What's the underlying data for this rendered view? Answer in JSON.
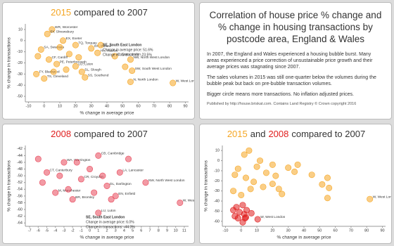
{
  "info": {
    "title": "Correlation of house price % change and % change in housing transactions by postcode area, England & Wales",
    "paragraphs": [
      "In 2007, the England and Wales experienced a housing bubble burst. Many areas experienced a price correction of unsustainable price growth and their average prices was stagnating since 2007.",
      "The sales volumes in 2015 was still one-quarter below the volumes during the bubble peak but back on pre-bubble transaction volumes.",
      "Bigger circle means more transactions. No inflation adjusted prices."
    ],
    "credit": "Published by http://house.briskat.com. Contains Land Registry © Crown copyright 2016"
  },
  "chart_data": [
    {
      "type": "scatter",
      "title": [
        {
          "text": "2015",
          "color": "#f5a623"
        },
        {
          "text": "compared to 2007"
        }
      ],
      "xlabel": "% change in average price",
      "ylabel": "% change in transactions",
      "xlim": [
        -12,
        92
      ],
      "xticks": [
        -10,
        0,
        10,
        20,
        30,
        40,
        50,
        60,
        70,
        80,
        90
      ],
      "ylim": [
        -55,
        15
      ],
      "yticks": [
        10,
        0,
        -10,
        -20,
        -30,
        -40,
        -50
      ],
      "grid": false,
      "series": [
        {
          "color": "#f5a623",
          "x": [
            5,
            2,
            12,
            20,
            30,
            34,
            45,
            55,
            56,
            51.6,
            55,
            82,
            20,
            8,
            -2,
            3,
            -5,
            0,
            26,
            24,
            16,
            10,
            22,
            -4,
            6,
            14,
            36
          ],
          "values": [
            10,
            6,
            0,
            -4,
            -7,
            -11,
            -14,
            -17,
            -27,
            -23.5,
            -37,
            -38,
            -23,
            -21,
            -8,
            -17,
            -30,
            -34,
            -33,
            -28,
            -12,
            -6,
            -15,
            -14,
            -28,
            -26,
            -4
          ],
          "point_labels": [
            "WR, Worcester",
            "SY, Shrewsbury",
            "EX, Exeter",
            "TQ, Torquay",
            "OX, Oxford",
            "HA, Harrow",
            "E, East London",
            "NW, North West London",
            "SW, South West London",
            null,
            "N, North London",
            "W, West London",
            "LU, Luton",
            "PE, Peterborough",
            "SA, Swansea",
            "CF, Cardiff",
            "FY, Blackpool",
            "TS, Cleveland",
            "SS, Southend",
            "SL, Slough",
            null,
            null,
            null,
            null,
            null,
            null,
            null
          ]
        }
      ],
      "annotation": [
        "SE, South East London",
        "Change in average price: 51.6%",
        "Change in transactions: -23.5%"
      ]
    },
    {
      "type": "scatter",
      "title": [
        {
          "text": "2008",
          "color": "#e01e1e"
        },
        {
          "text": "compared to 2007"
        }
      ],
      "xlabel": "% change in average price",
      "ylabel": "% change in transactions",
      "xlim": [
        -7.5,
        11.5
      ],
      "xticks": [
        -7,
        -6,
        -5,
        -4,
        -3,
        -2,
        -1,
        0,
        1,
        2,
        3,
        4,
        5,
        6,
        7,
        8,
        9,
        10,
        11
      ],
      "ylim": [
        -65,
        -41
      ],
      "yticks": [
        -42,
        -44,
        -46,
        -48,
        -50,
        -52,
        -54,
        -56,
        -58,
        -60,
        -62,
        -64
      ],
      "grid": false,
      "series": [
        {
          "color": "#e8475a",
          "x": [
            1,
            -3,
            3.5,
            6.5,
            2.5,
            10.5,
            1,
            -2,
            -4,
            -5,
            -1,
            2,
            3,
            -6,
            -5.5,
            -3.5,
            0,
            -2.5,
            0.5,
            4.5,
            -1.5,
            1.5
          ],
          "values": [
            -44,
            -46,
            -49,
            -52,
            -57,
            -58,
            -61,
            -57,
            -55,
            -49,
            -51,
            -53,
            -56,
            -45,
            -52,
            -50,
            -48,
            -54,
            -55,
            -45,
            -46,
            -50
          ],
          "point_labels": [
            "CB, Cambridge",
            "WA, Warrington",
            "LA, Lancaster",
            "NW, North West London",
            null,
            "W, West London",
            "LU, Luton",
            "BR, Bromley",
            "M, Manchester",
            "CT, Canterbury",
            "CR, Croydon",
            "DL, Darlington",
            "EN, Enfield",
            null,
            null,
            null,
            null,
            null,
            null,
            null,
            null,
            null
          ]
        }
      ],
      "annotation": [
        "SE, South East London",
        "Change in average price: 6.0%",
        "Change in transactions: -44.3%"
      ]
    },
    {
      "type": "scatter",
      "title": [
        {
          "text": "2015",
          "color": "#f5a623"
        },
        {
          "text": "and"
        },
        {
          "text": "2008",
          "color": "#e01e1e"
        },
        {
          "text": "compared to 2007"
        }
      ],
      "xlabel": "% change in average price",
      "ylabel": "% change in transactions",
      "xlim": [
        -12,
        92
      ],
      "xticks": [
        -10,
        0,
        10,
        20,
        30,
        40,
        50,
        60,
        70,
        80,
        90
      ],
      "ylim": [
        -65,
        15
      ],
      "yticks": [
        10,
        0,
        -10,
        -20,
        -30,
        -40,
        -50,
        -60
      ],
      "grid": false,
      "series": [
        {
          "color": "#f5a623",
          "x": [
            5,
            2,
            12,
            20,
            30,
            34,
            45,
            55,
            56,
            51.6,
            55,
            82,
            20,
            8,
            -2,
            3,
            -5,
            0,
            26,
            24,
            16,
            10,
            22,
            -4,
            6,
            14,
            36
          ],
          "values": [
            10,
            6,
            0,
            -4,
            -7,
            -11,
            -14,
            -17,
            -27,
            -23.5,
            -37,
            -38,
            -23,
            -21,
            -8,
            -17,
            -30,
            -34,
            -33,
            -28,
            -12,
            -6,
            -15,
            -14,
            -28,
            -26,
            -4
          ],
          "point_labels": [
            null,
            null,
            null,
            null,
            null,
            null,
            null,
            null,
            null,
            null,
            null,
            "W, West London",
            null,
            null,
            null,
            null,
            null,
            null,
            null,
            null,
            null,
            null,
            null,
            null,
            null,
            null,
            null
          ]
        },
        {
          "color": "#e01e1e",
          "x": [
            1,
            -3,
            3.5,
            6.5,
            2.5,
            10.5,
            1,
            -2,
            -4,
            -5,
            -1,
            2,
            3
          ],
          "values": [
            -44,
            -46,
            -49,
            -52,
            -57,
            -58,
            -61,
            -57,
            -55,
            -49,
            -51,
            -53,
            -56
          ],
          "point_labels": [
            null,
            null,
            null,
            null,
            null,
            "W, West London",
            null,
            null,
            null,
            null,
            null,
            null,
            null
          ]
        }
      ]
    }
  ]
}
